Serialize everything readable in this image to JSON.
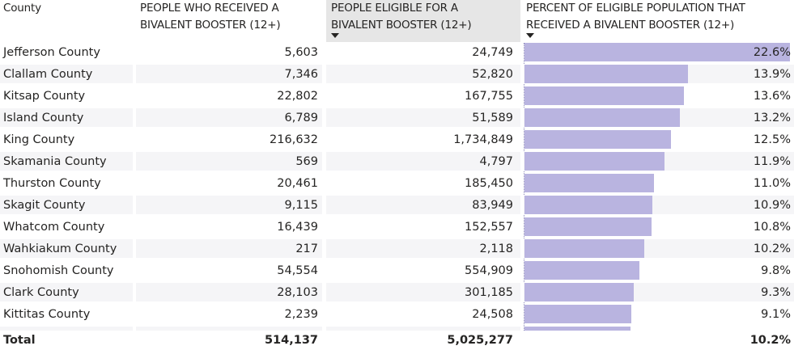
{
  "table": {
    "columns": [
      {
        "label_line1": "County",
        "label_line2": "",
        "sorted": false
      },
      {
        "label_line1": "PEOPLE WHO RECEIVED A",
        "label_line2": "BIVALENT BOOSTER (12+)",
        "sorted": false
      },
      {
        "label_line1": "PEOPLE ELIGIBLE FOR A",
        "label_line2": "BIVALENT BOOSTER (12+)",
        "sorted": true,
        "sort_direction": "descending"
      },
      {
        "label_line1": "PERCENT OF ELIGIBLE POPULATION THAT",
        "label_line2": "RECEIVED A BIVALENT BOOSTER (12+)",
        "sorted": true,
        "sort_direction": "descending"
      }
    ],
    "bar_color": "#b9b4e0",
    "bar_max_percent": 22.6,
    "rows": [
      {
        "county": "Jefferson County",
        "received": "5,603",
        "eligible": "24,749",
        "percent": "22.6%",
        "percent_value": 22.6
      },
      {
        "county": "Clallam County",
        "received": "7,346",
        "eligible": "52,820",
        "percent": "13.9%",
        "percent_value": 13.9
      },
      {
        "county": "Kitsap County",
        "received": "22,802",
        "eligible": "167,755",
        "percent": "13.6%",
        "percent_value": 13.6
      },
      {
        "county": "Island County",
        "received": "6,789",
        "eligible": "51,589",
        "percent": "13.2%",
        "percent_value": 13.2
      },
      {
        "county": "King County",
        "received": "216,632",
        "eligible": "1,734,849",
        "percent": "12.5%",
        "percent_value": 12.5
      },
      {
        "county": "Skamania County",
        "received": "569",
        "eligible": "4,797",
        "percent": "11.9%",
        "percent_value": 11.9
      },
      {
        "county": "Thurston County",
        "received": "20,461",
        "eligible": "185,450",
        "percent": "11.0%",
        "percent_value": 11.0
      },
      {
        "county": "Skagit County",
        "received": "9,115",
        "eligible": "83,949",
        "percent": "10.9%",
        "percent_value": 10.9
      },
      {
        "county": "Whatcom County",
        "received": "16,439",
        "eligible": "152,557",
        "percent": "10.8%",
        "percent_value": 10.8
      },
      {
        "county": "Wahkiakum County",
        "received": "217",
        "eligible": "2,118",
        "percent": "10.2%",
        "percent_value": 10.2
      },
      {
        "county": "Snohomish County",
        "received": "54,554",
        "eligible": "554,909",
        "percent": "9.8%",
        "percent_value": 9.8
      },
      {
        "county": "Clark County",
        "received": "28,103",
        "eligible": "301,185",
        "percent": "9.3%",
        "percent_value": 9.3
      },
      {
        "county": "Kittitas County",
        "received": "2,239",
        "eligible": "24,508",
        "percent": "9.1%",
        "percent_value": 9.1
      }
    ],
    "partial_row": {
      "percent_value": 9.0
    },
    "total": {
      "label": "Total",
      "received": "514,137",
      "eligible": "5,025,277",
      "percent": "10.2%"
    }
  }
}
